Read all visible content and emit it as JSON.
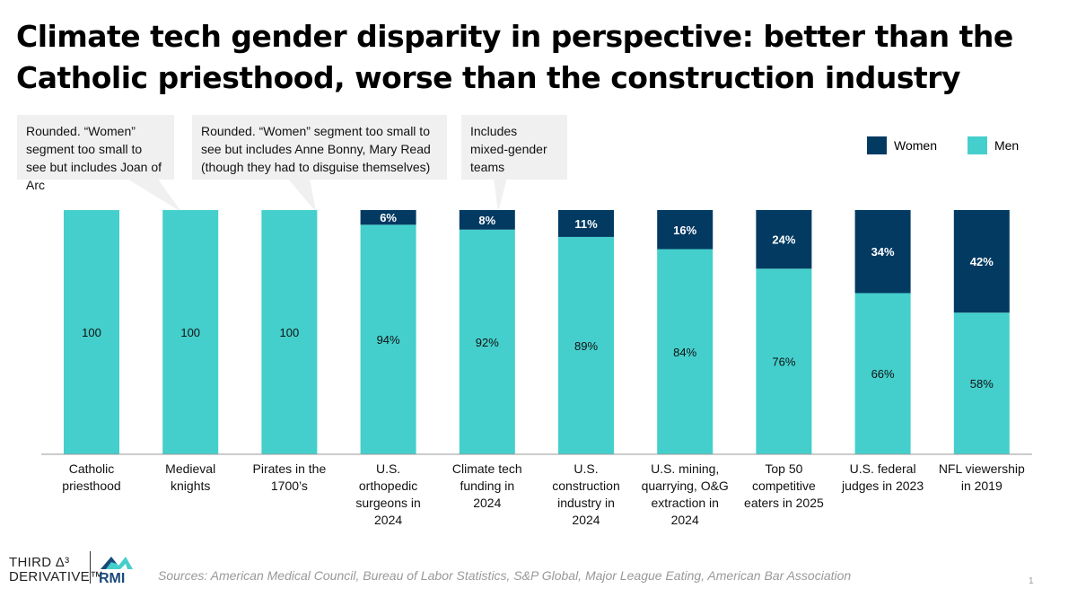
{
  "title": "Climate tech gender disparity in perspective: better than the Catholic priesthood, worse than the construction industry",
  "callouts": [
    "Rounded. “Women” segment too small to see but includes Joan of Arc",
    "Rounded. “Women” segment too small to see but includes Anne Bonny, Mary Read (though they had to disguise themselves)",
    "Includes mixed-gender teams"
  ],
  "colors": {
    "women": "#023a62",
    "men": "#44cfcc"
  },
  "chart_data": {
    "type": "bar",
    "stacked": true,
    "ylim": [
      0,
      100
    ],
    "legend": "top-right",
    "grid": false,
    "categories": [
      "Catholic priesthood",
      "Medieval knights",
      "Pirates in the 1700’s",
      "U.S. orthopedic surgeons in 2024",
      "Climate tech funding in 2024",
      "U.S. construction industry in 2024",
      "U.S. mining, quarrying, O&G extraction in 2024",
      "Top 50 competitive eaters in 2025",
      "U.S. federal judges in 2023",
      "NFL viewership in 2019"
    ],
    "series": [
      {
        "name": "Men",
        "values": [
          100,
          100,
          100,
          94,
          92,
          89,
          84,
          76,
          66,
          58
        ],
        "labels": [
          "100",
          "100",
          "100",
          "94%",
          "92%",
          "89%",
          "84%",
          "76%",
          "66%",
          "58%"
        ]
      },
      {
        "name": "Women",
        "values": [
          0,
          0,
          0,
          6,
          8,
          11,
          16,
          24,
          34,
          42
        ],
        "labels": [
          "",
          "",
          "",
          "6%",
          "8%",
          "11%",
          "16%",
          "24%",
          "34%",
          "42%"
        ]
      }
    ]
  },
  "legend": {
    "women": "Women",
    "men": "Men"
  },
  "sources": "Sources: American Medical Council, Bureau of Labor Statistics, S&P Global, Major League Eating, American Bar Association",
  "page_number": "1",
  "logos": {
    "third_derivative": "THIRD DERIVATIVE",
    "rmi": "RMI"
  }
}
